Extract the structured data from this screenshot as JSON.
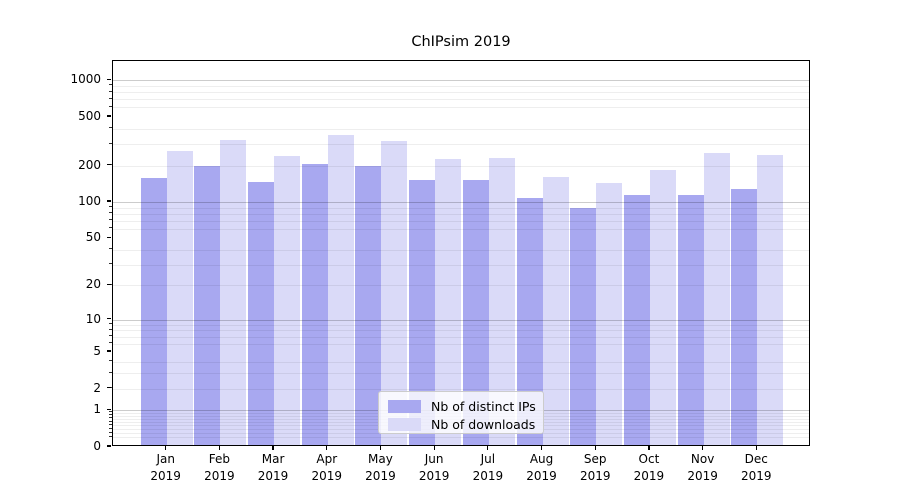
{
  "chart_data": {
    "type": "bar",
    "title": "ChIPsim 2019",
    "categories": [
      {
        "month": "Jan",
        "year": "2019"
      },
      {
        "month": "Feb",
        "year": "2019"
      },
      {
        "month": "Mar",
        "year": "2019"
      },
      {
        "month": "Apr",
        "year": "2019"
      },
      {
        "month": "May",
        "year": "2019"
      },
      {
        "month": "Jun",
        "year": "2019"
      },
      {
        "month": "Jul",
        "year": "2019"
      },
      {
        "month": "Aug",
        "year": "2019"
      },
      {
        "month": "Sep",
        "year": "2019"
      },
      {
        "month": "Oct",
        "year": "2019"
      },
      {
        "month": "Nov",
        "year": "2019"
      },
      {
        "month": "Dec",
        "year": "2019"
      }
    ],
    "series": [
      {
        "name": "Nb of distinct IPs",
        "color": "#a8a8f0",
        "values": [
          152,
          191,
          142,
          197,
          192,
          147,
          147,
          104,
          86,
          110,
          110,
          123
        ]
      },
      {
        "name": "Nb of downloads",
        "color": "#dadaf8",
        "values": [
          252,
          310,
          229,
          343,
          306,
          218,
          221,
          156,
          138,
          177,
          243,
          236
        ]
      }
    ],
    "y_axis": {
      "scale": "log1p",
      "ylim": [
        0,
        1440
      ],
      "ticks": [
        0,
        1,
        2,
        5,
        10,
        20,
        50,
        100,
        200,
        500,
        1000
      ],
      "major_gridlines": [
        1,
        10,
        100,
        1000
      ],
      "minor_gridlines": [
        0.2,
        0.3,
        0.4,
        0.5,
        0.6,
        0.7,
        0.8,
        0.9,
        2,
        3,
        4,
        6,
        7,
        8,
        9,
        20,
        30,
        40,
        60,
        70,
        80,
        90,
        200,
        300,
        400,
        600,
        700,
        800,
        900
      ]
    },
    "grid": true,
    "legend": {
      "position": "lower center",
      "entries": [
        "Nb of distinct IPs",
        "Nb of downloads"
      ]
    }
  },
  "colors": {
    "major_grid": "rgba(0,0,0,0.20)",
    "minor_grid": "rgba(0,0,0,0.065)",
    "spine": "#000000",
    "background": "#ffffff",
    "text": "#000000"
  }
}
